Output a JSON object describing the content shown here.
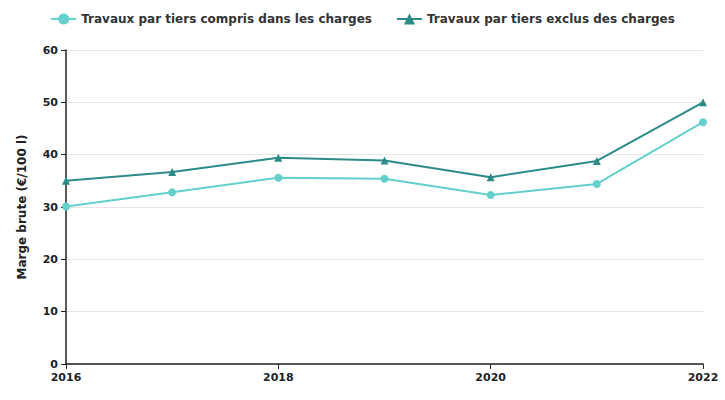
{
  "chart_data": {
    "type": "line",
    "y_label": "Marge brute (€/100 l)",
    "x": [
      2016,
      2017,
      2018,
      2019,
      2020,
      2021,
      2022
    ],
    "xlim": [
      2016,
      2022
    ],
    "xticks": [
      2016,
      2018,
      2020,
      2022
    ],
    "ylim": [
      0,
      60
    ],
    "yticks": [
      0,
      10,
      20,
      30,
      40,
      50,
      60
    ],
    "grid": true,
    "legend": "top",
    "series": [
      {
        "name": "Travaux par tiers compris dans les charges",
        "color": "#63d0cb",
        "marker": "circle",
        "values": [
          30.1,
          32.8,
          35.6,
          35.4,
          32.3,
          34.4,
          46.2
        ]
      },
      {
        "name": "Travaux par tiers exclus des charges",
        "color": "#2b8c87",
        "marker": "triangle",
        "values": [
          35.0,
          36.7,
          39.4,
          38.9,
          35.7,
          38.8,
          50.0
        ]
      }
    ]
  }
}
